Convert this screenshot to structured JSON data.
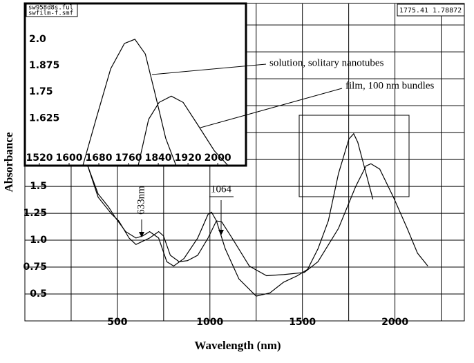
{
  "chart_data": [
    {
      "type": "line",
      "xlabel": "Wavelength (nm)",
      "ylabel": "Absorbance",
      "xlim": [
        0,
        2375
      ],
      "ylim": [
        0.25,
        3.2
      ],
      "xticks": [
        500,
        1000,
        1500,
        2000
      ],
      "yticks": [
        0.5,
        0.75,
        {
          "value": 1,
          "label": "1.0"
        },
        1.25,
        1.5
      ],
      "grid": true,
      "readout": "1775.41   1.78872",
      "annotations": [
        "633nm",
        "1064",
        "solution, solitary nanotubes",
        "film, 100 nm bundles"
      ],
      "series": [
        {
          "name": "sw958d8s.ful",
          "color": "#000000",
          "x": [
            340,
            396,
            452,
            489,
            545,
            600,
            637,
            674,
            723,
            767,
            804,
            860,
            934,
            990,
            1009,
            1035,
            1083,
            1157,
            1250,
            1324,
            1398,
            1473,
            1528,
            1584,
            1640,
            1695,
            1751,
            1777,
            1799,
            1844,
            1881
          ],
          "values": [
            1.69,
            1.43,
            1.31,
            1.21,
            1.08,
            1.02,
            1.04,
            1.08,
            1.02,
            0.8,
            0.76,
            0.83,
            1.02,
            1.24,
            1.26,
            1.18,
            0.92,
            0.64,
            0.48,
            0.51,
            0.61,
            0.67,
            0.73,
            0.92,
            1.18,
            1.62,
            1.94,
            1.99,
            1.91,
            1.62,
            1.38
          ]
        },
        {
          "name": "swfilm-f.smf",
          "color": "#000000",
          "x": [
            340,
            396,
            470,
            507,
            563,
            600,
            637,
            674,
            723,
            749,
            786,
            834,
            879,
            934,
            990,
            1035,
            1064,
            1120,
            1213,
            1306,
            1398,
            1510,
            1584,
            1695,
            1788,
            1844,
            1870,
            1918,
            1992,
            2066,
            2122,
            2178
          ],
          "values": [
            1.69,
            1.4,
            1.24,
            1.18,
            1.02,
            0.96,
            0.99,
            1.02,
            1.08,
            1.04,
            0.86,
            0.8,
            0.81,
            0.86,
            1.02,
            1.18,
            1.17,
            1.02,
            0.76,
            0.67,
            0.68,
            0.7,
            0.8,
            1.11,
            1.5,
            1.69,
            1.71,
            1.66,
            1.4,
            1.11,
            0.88,
            0.76
          ]
        }
      ]
    },
    {
      "type": "line",
      "xlim": [
        1481,
        2076
      ],
      "ylim": [
        1.4,
        2.17
      ],
      "xticks": [
        1520,
        1600,
        1680,
        1760,
        1840,
        1920,
        2000
      ],
      "yticks": [
        {
          "value": 2,
          "label": "2.0"
        },
        1.875,
        1.75,
        1.625
      ],
      "series": [
        {
          "name": "sw958d8s.ful",
          "color": "#000000",
          "x": [
            1637,
            1674,
            1712,
            1749,
            1777,
            1805,
            1833,
            1860,
            1888
          ],
          "values": [
            1.4,
            1.63,
            1.86,
            1.98,
            2.0,
            1.93,
            1.73,
            1.53,
            1.4
          ]
        },
        {
          "name": "swfilm-f.smf",
          "color": "#000000",
          "x": [
            1786,
            1814,
            1842,
            1875,
            1907,
            1944,
            1991,
            2028
          ],
          "values": [
            1.4,
            1.62,
            1.7,
            1.73,
            1.7,
            1.6,
            1.47,
            1.4
          ]
        }
      ]
    }
  ]
}
